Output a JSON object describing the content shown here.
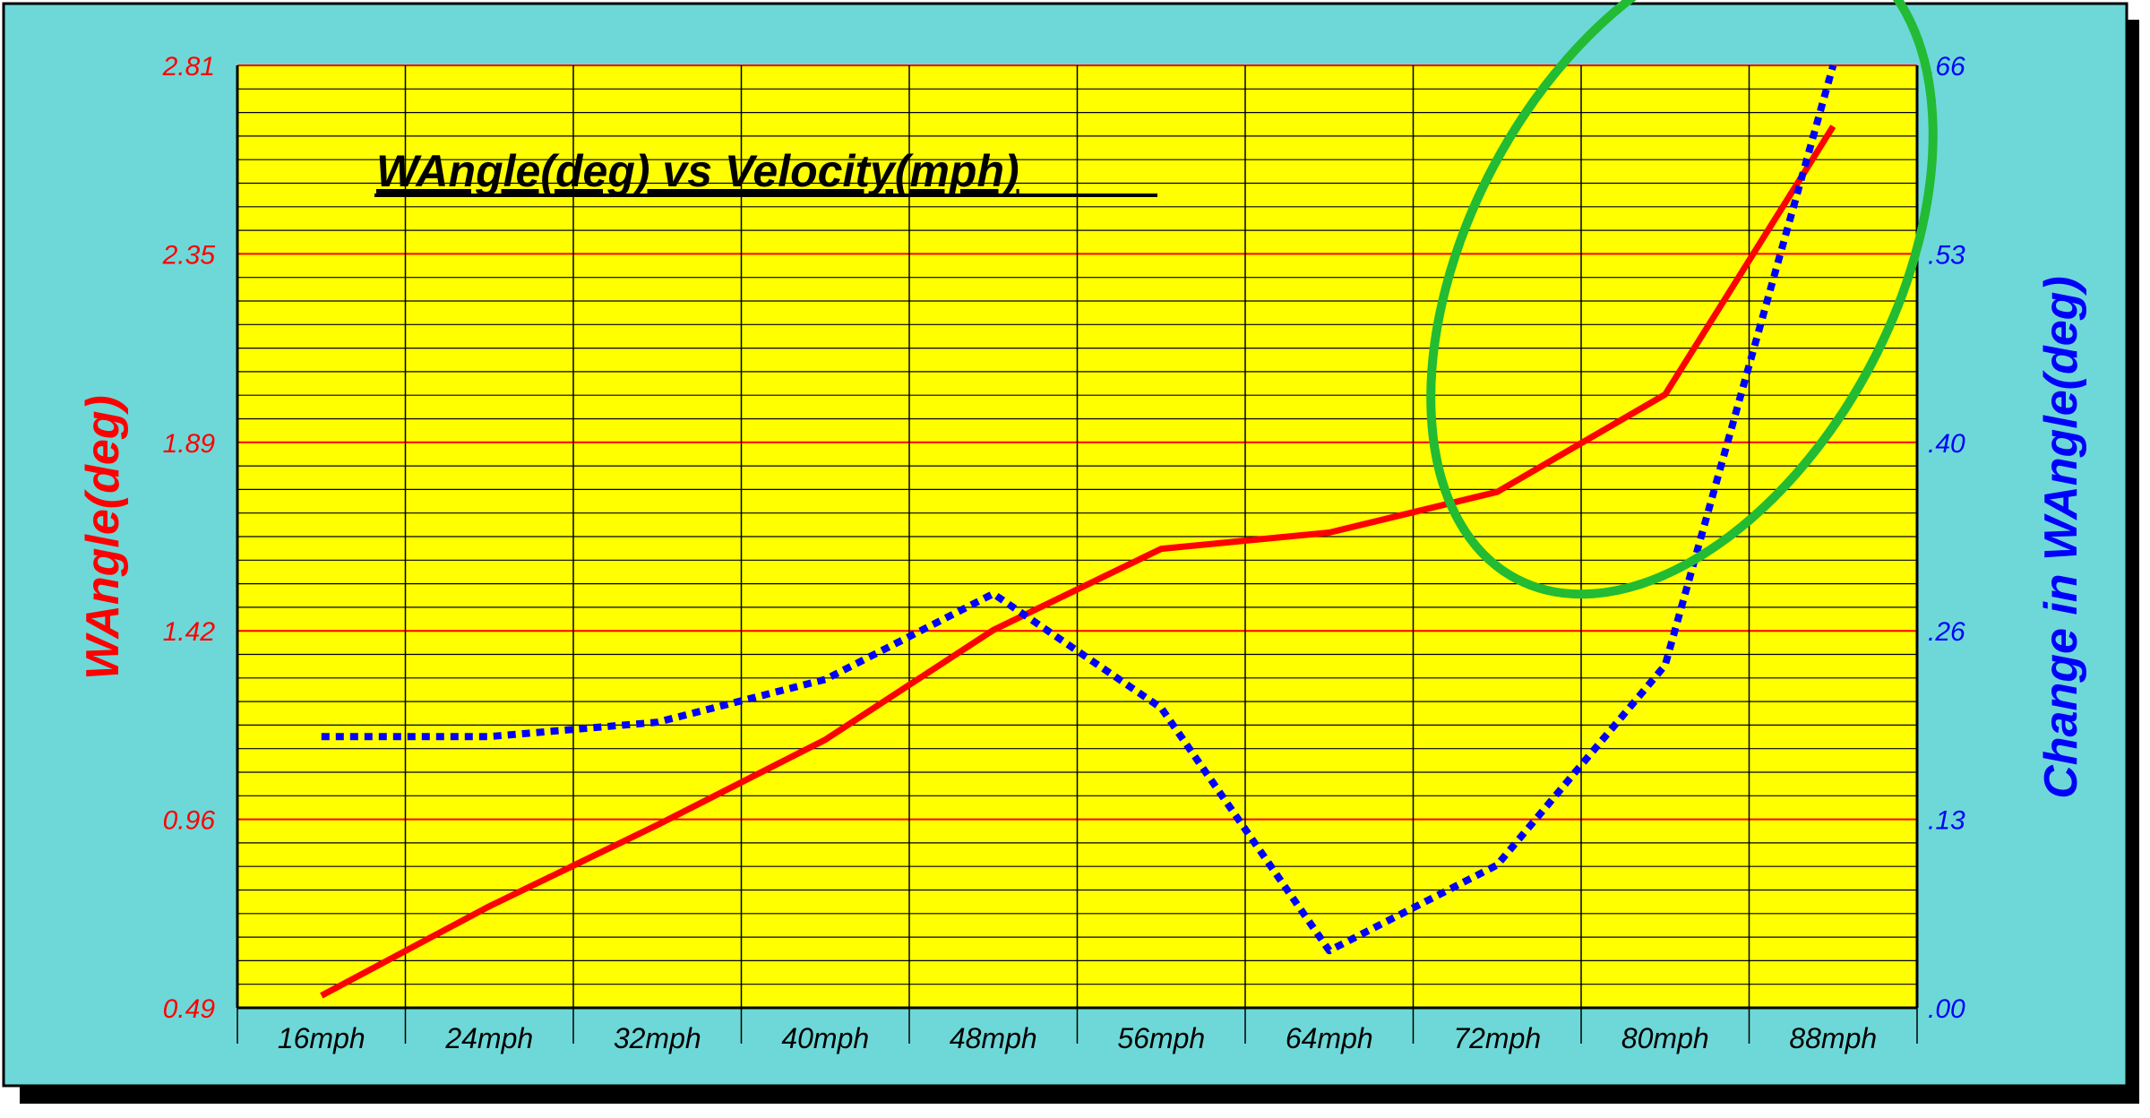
{
  "chart_data": {
    "type": "line",
    "title": "WAngle(deg) vs Velocity(mph)",
    "categories": [
      "16mph",
      "24mph",
      "32mph",
      "40mph",
      "48mph",
      "56mph",
      "64mph",
      "72mph",
      "80mph",
      "88mph"
    ],
    "y_left": {
      "label": "WAngle(deg)",
      "ticks": [
        "0.49",
        "0.96",
        "1.42",
        "1.89",
        "2.35",
        "2.81"
      ],
      "range": [
        0.49,
        2.81
      ],
      "color": "#ff0000"
    },
    "y_right": {
      "label": "Change in WAngle(deg)",
      "ticks": [
        ".00",
        ".13",
        ".26",
        ".40",
        ".53",
        ".66"
      ],
      "range": [
        0.0,
        0.66
      ],
      "color": "#0000ff"
    },
    "series": [
      {
        "axis": "left",
        "style": "solid",
        "color": "#ff0000",
        "values": [
          0.52,
          0.74,
          0.94,
          1.15,
          1.42,
          1.62,
          1.66,
          1.76,
          2.0,
          2.66
        ]
      },
      {
        "axis": "right",
        "style": "dotted",
        "color": "#0000ff",
        "values": [
          0.19,
          0.19,
          0.2,
          0.23,
          0.29,
          0.21,
          0.04,
          0.1,
          0.24,
          0.66
        ]
      }
    ],
    "grid": {
      "major": true,
      "minor": true,
      "vertical": true
    },
    "annotation": {
      "type": "ellipse",
      "color": "#22bb33",
      "around": [
        "80mph",
        "88mph"
      ]
    },
    "colors": {
      "background": "#6ed8d8",
      "plot_area": "#ffff00",
      "major_grid": "#ff0000",
      "minor_grid": "#000000"
    }
  }
}
